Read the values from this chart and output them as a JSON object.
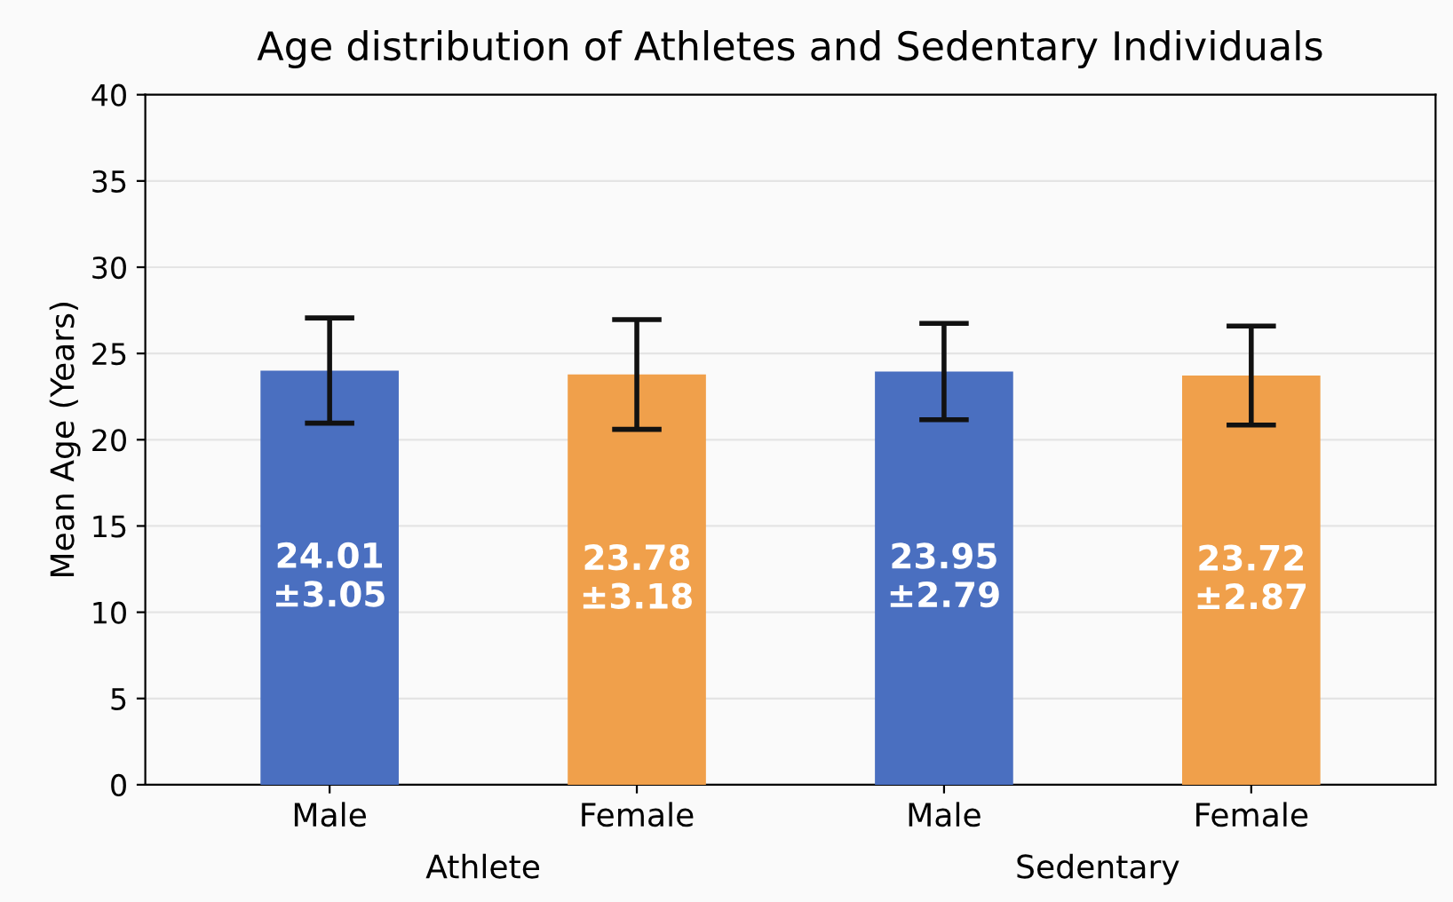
{
  "chart_data": {
    "type": "bar",
    "title": "Age distribution of Athletes and Sedentary Individuals",
    "ylabel": "Mean Age (Years)",
    "categories": [
      "Male",
      "Female",
      "Male",
      "Female"
    ],
    "values": [
      24.01,
      23.78,
      23.95,
      23.72
    ],
    "errors": [
      3.05,
      3.18,
      2.79,
      2.87
    ],
    "colors": [
      "#4a6fc0",
      "#f0a04b",
      "#4a6fc0",
      "#f0a04b"
    ],
    "value_labels": [
      "24.01\n±3.05",
      "23.78\n±3.18",
      "23.95\n±2.79",
      "23.72\n±2.87"
    ],
    "annotations": [
      "Athlete",
      "Sedentary"
    ],
    "ylim": [
      0,
      40
    ],
    "yticks": [
      0,
      5,
      10,
      15,
      20,
      25,
      30,
      35,
      40
    ],
    "grid": "y"
  }
}
